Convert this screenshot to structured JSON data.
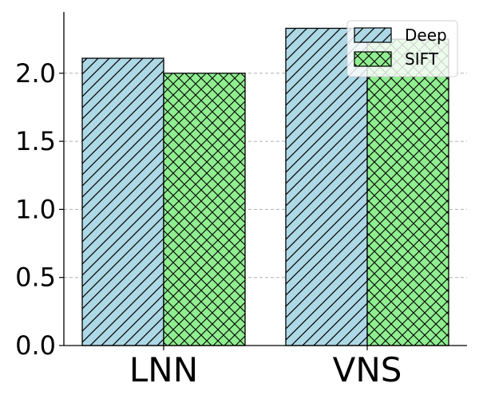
{
  "chart_data": {
    "type": "bar",
    "categories": [
      "LNN",
      "VNS"
    ],
    "series": [
      {
        "name": "Deep",
        "values": [
          2.11,
          2.33
        ],
        "color": "#add8e6",
        "hatch": "diagonal"
      },
      {
        "name": "SIFT",
        "values": [
          2.0,
          2.25
        ],
        "color": "#90ee90",
        "hatch": "crosshatch"
      }
    ],
    "ylim": [
      0,
      2.45
    ],
    "yticks": [
      "0.0",
      "0.5",
      "1.0",
      "1.5",
      "2.0"
    ],
    "grid": true,
    "legend_position": "top-right",
    "title": "",
    "xlabel": "",
    "ylabel": ""
  }
}
